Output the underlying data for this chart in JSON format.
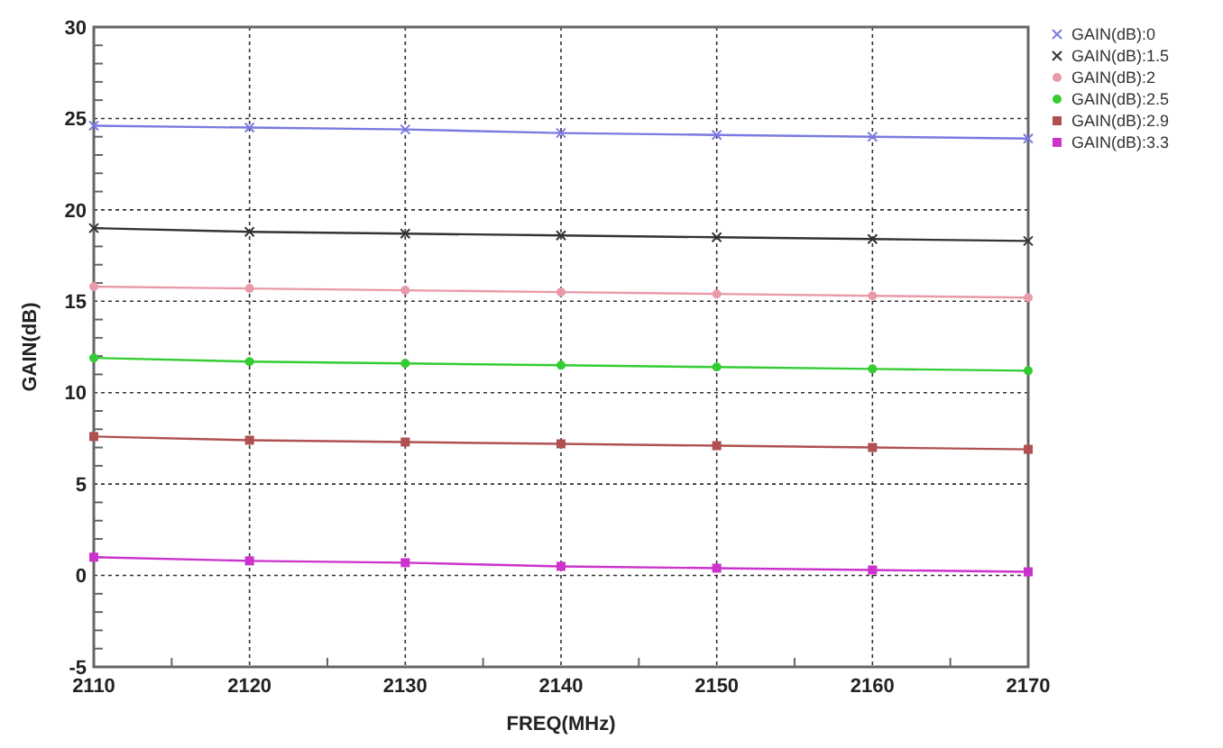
{
  "chart_data": {
    "type": "line",
    "xlabel": "FREQ(MHz)",
    "ylabel": "GAIN(dB)",
    "x": [
      2110,
      2120,
      2130,
      2140,
      2150,
      2160,
      2170
    ],
    "xlim": [
      2110,
      2170
    ],
    "xticks": [
      2110,
      2120,
      2130,
      2140,
      2150,
      2160,
      2170
    ],
    "ylim": [
      -5,
      30
    ],
    "yticks": [
      -5,
      0,
      5,
      10,
      15,
      20,
      25,
      30
    ],
    "grid": true,
    "legend": "top right",
    "line_style": "solid",
    "series": [
      {
        "name": "GAIN(dB):0",
        "color": "#7a7ae0",
        "marker": "cross",
        "values": [
          24.6,
          24.5,
          24.4,
          24.2,
          24.1,
          24.0,
          23.9
        ]
      },
      {
        "name": "GAIN(dB):1.5",
        "color": "#333333",
        "marker": "cross",
        "values": [
          19.0,
          18.8,
          18.7,
          18.6,
          18.5,
          18.4,
          18.3
        ]
      },
      {
        "name": "GAIN(dB):2",
        "color": "#e89aa8",
        "marker": "circle",
        "values": [
          15.8,
          15.7,
          15.6,
          15.5,
          15.4,
          15.3,
          15.2
        ]
      },
      {
        "name": "GAIN(dB):2.5",
        "color": "#33cc33",
        "marker": "circle",
        "values": [
          11.9,
          11.7,
          11.6,
          11.5,
          11.4,
          11.3,
          11.2
        ]
      },
      {
        "name": "GAIN(dB):2.9",
        "color": "#b05050",
        "marker": "square",
        "values": [
          7.6,
          7.4,
          7.3,
          7.2,
          7.1,
          7.0,
          6.9
        ]
      },
      {
        "name": "GAIN(dB):3.3",
        "color": "#cc33cc",
        "marker": "square",
        "values": [
          1.0,
          0.8,
          0.7,
          0.5,
          0.4,
          0.3,
          0.2
        ]
      }
    ]
  }
}
